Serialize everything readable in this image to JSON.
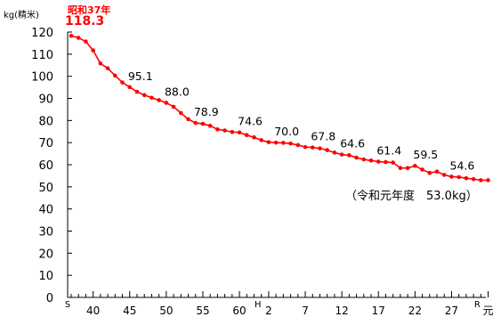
{
  "chart_data": {
    "type": "line",
    "title": "",
    "ylabel": "kg(精米)",
    "xlabel": "",
    "ylim": [
      0,
      120
    ],
    "yticks": [
      0,
      10,
      20,
      30,
      40,
      50,
      60,
      70,
      80,
      90,
      100,
      110,
      120
    ],
    "grid": false,
    "legend": "none",
    "line_color": "#ff0000",
    "era_labels": [
      {
        "text": "S",
        "index": 0
      },
      {
        "text": "H",
        "index": 26
      },
      {
        "text": "R",
        "index": 56
      }
    ],
    "x_tick_labels": [
      {
        "text": "40",
        "index": 3
      },
      {
        "text": "45",
        "index": 8
      },
      {
        "text": "50",
        "index": 13
      },
      {
        "text": "55",
        "index": 18
      },
      {
        "text": "60",
        "index": 23
      },
      {
        "text": "2",
        "index": 27
      },
      {
        "text": "7",
        "index": 32
      },
      {
        "text": "12",
        "index": 37
      },
      {
        "text": "17",
        "index": 42
      },
      {
        "text": "22",
        "index": 47
      },
      {
        "text": "27",
        "index": 52
      },
      {
        "text": "元",
        "index": 57
      }
    ],
    "values": [
      118.3,
      117.4,
      115.7,
      111.7,
      105.8,
      103.6,
      100.3,
      97.2,
      95.1,
      93.0,
      91.5,
      90.3,
      89.2,
      88.0,
      86.2,
      83.4,
      80.6,
      78.9,
      78.5,
      77.6,
      76.0,
      75.5,
      74.8,
      74.6,
      73.4,
      72.4,
      71.1,
      70.2,
      70.0,
      69.9,
      69.6,
      68.9,
      68.0,
      67.8,
      67.4,
      66.6,
      65.5,
      64.6,
      64.3,
      63.2,
      62.4,
      61.9,
      61.4,
      61.2,
      61.0,
      58.5,
      58.5,
      59.5,
      57.8,
      56.3,
      56.9,
      55.4,
      54.6,
      54.4,
      53.9,
      53.5,
      53.0,
      53.0
    ],
    "annotations": [
      {
        "text": "118.3",
        "index": 0,
        "kind": "peak"
      },
      {
        "text": "95.1",
        "index": 8
      },
      {
        "text": "88.0",
        "index": 13
      },
      {
        "text": "78.9",
        "index": 17
      },
      {
        "text": "74.6",
        "index": 23
      },
      {
        "text": "70.0",
        "index": 28
      },
      {
        "text": "67.8",
        "index": 33
      },
      {
        "text": "64.6",
        "index": 37
      },
      {
        "text": "61.4",
        "index": 42
      },
      {
        "text": "59.5",
        "index": 47
      },
      {
        "text": "54.6",
        "index": 52
      }
    ],
    "peak_note": "昭和37年",
    "current_note": "（令和元年度　53.0kg）"
  }
}
